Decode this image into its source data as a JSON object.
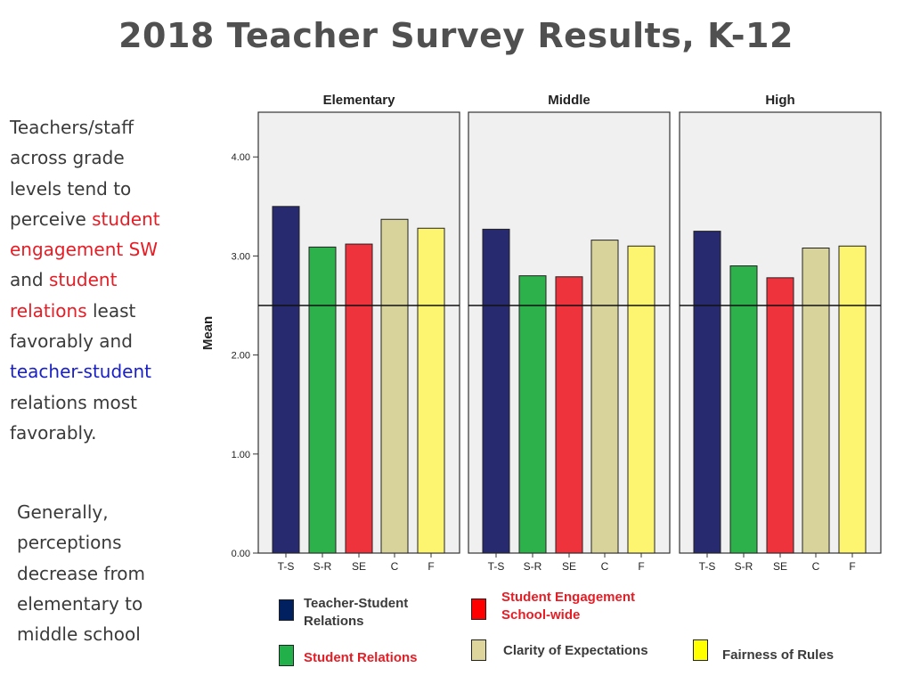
{
  "title": "2018 Teacher Survey Results, K-12",
  "sidebar": {
    "block1": [
      {
        "text": "Teachers/staff across grade levels tend to perceive ",
        "style": "normal"
      },
      {
        "text": "student engagement SW",
        "style": "red"
      },
      {
        "text": " and ",
        "style": "normal"
      },
      {
        "text": "student relations",
        "style": "red"
      },
      {
        "text": " least favorably and ",
        "style": "normal"
      },
      {
        "text": "teacher-student",
        "style": "blue"
      },
      {
        "text": " relations most favorably.",
        "style": "normal"
      }
    ],
    "block2": "Generally, perceptions decrease from elementary to middle school"
  },
  "chart_data": {
    "type": "bar",
    "ylabel": "Mean",
    "ylim": [
      0,
      4.4
    ],
    "y_ticks": [
      "0.00",
      "1.00",
      "2.00",
      "3.00",
      "4.00"
    ],
    "y_tick_values": [
      0,
      1,
      2,
      3,
      4
    ],
    "reference_line": 2.5,
    "categories": [
      "T-S",
      "S-R",
      "SE",
      "C",
      "F"
    ],
    "colors": [
      "#272a6e",
      "#2db14a",
      "#ee333d",
      "#d8d29b",
      "#fdf46f"
    ],
    "panels": [
      {
        "name": "Elementary",
        "values": [
          3.5,
          3.09,
          3.12,
          3.37,
          3.28
        ]
      },
      {
        "name": "Middle",
        "values": [
          3.27,
          2.8,
          2.79,
          3.16,
          3.1
        ]
      },
      {
        "name": "High",
        "values": [
          3.25,
          2.9,
          2.78,
          3.08,
          3.1
        ]
      }
    ]
  },
  "legend": [
    {
      "label": "Teacher-Student Relations",
      "color": "#002060",
      "text_color": "#3a3a3a"
    },
    {
      "label": "Student Engagement School-wide",
      "color": "#ff0000",
      "text_color": "#e81c24"
    },
    {
      "label": "Student Relations",
      "color": "#22b04a",
      "text_color": "#e81c24"
    },
    {
      "label": "Clarity of Expectations",
      "color": "#ddd59c",
      "text_color": "#3a3a3a"
    },
    {
      "label": "Fairness of Rules",
      "color": "#ffff00",
      "text_color": "#3a3a3a"
    }
  ]
}
